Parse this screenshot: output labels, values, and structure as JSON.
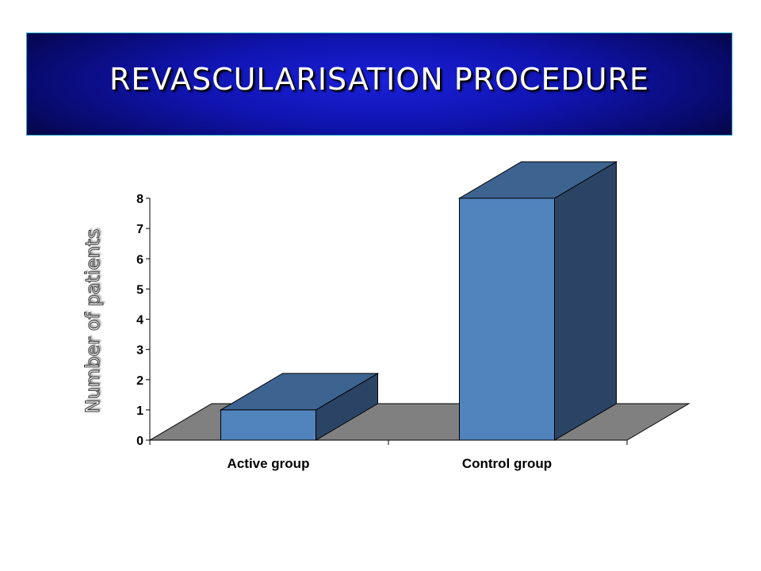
{
  "title": "REVASCULARISATION PROCEDURE",
  "colors": {
    "bar_front": "#5183bd",
    "bar_top": "#3d6391",
    "bar_side": "#2b4466",
    "floor": "#808080"
  },
  "chart_data": {
    "type": "bar",
    "title": "",
    "xlabel": "",
    "ylabel": "Number of patients",
    "categories": [
      "Active group",
      "Control group"
    ],
    "values": [
      1,
      8
    ],
    "ylim": [
      0,
      8
    ],
    "yticks": [
      0,
      1,
      2,
      3,
      4,
      5,
      6,
      7,
      8
    ],
    "grid": false,
    "legend": "none",
    "style": "3d-column"
  }
}
